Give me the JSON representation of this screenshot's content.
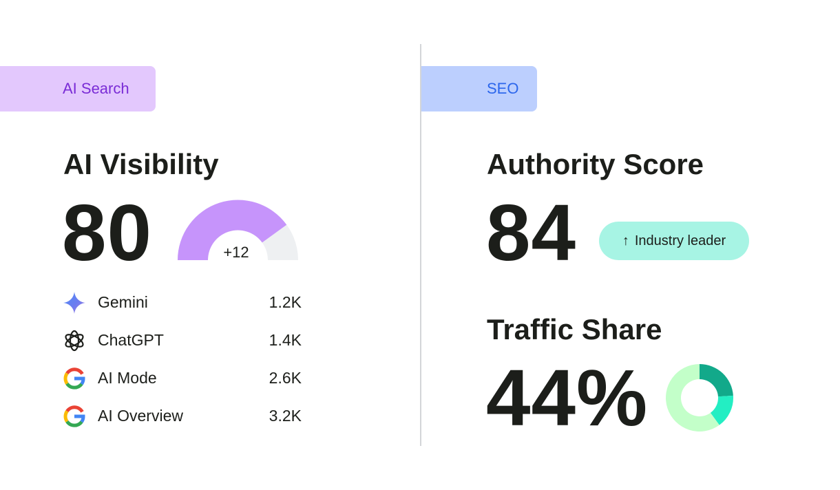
{
  "ai_search": {
    "tag": "AI Search",
    "title": "AI Visibility",
    "score": "80",
    "gauge": {
      "fill_fraction": 0.8,
      "delta": "+12",
      "fill_color": "#c694fb",
      "track_color": "#eef0f2"
    },
    "sources": [
      {
        "icon": "gemini-icon",
        "name": "Gemini",
        "value": "1.2K"
      },
      {
        "icon": "chatgpt-icon",
        "name": "ChatGPT",
        "value": "1.4K"
      },
      {
        "icon": "google-icon",
        "name": "AI Mode",
        "value": "2.6K"
      },
      {
        "icon": "google-icon",
        "name": "AI Overview",
        "value": "3.2K"
      }
    ]
  },
  "seo": {
    "tag": "SEO",
    "authority": {
      "title": "Authority Score",
      "score": "84",
      "badge": {
        "icon": "arrow-up-icon",
        "label": "Industry leader"
      }
    },
    "traffic": {
      "title": "Traffic Share",
      "value": "44%",
      "donut": {
        "segments": [
          {
            "fraction": 0.24,
            "color": "#12a98a"
          },
          {
            "fraction": 0.16,
            "color": "#23eec3"
          },
          {
            "fraction": 0.6,
            "color": "#c3ffc9"
          }
        ]
      }
    }
  },
  "colors": {
    "ai_tag_bg": "#e3c8fd",
    "ai_tag_text": "#7a2cd6",
    "seo_tag_bg": "#bccffe",
    "seo_tag_text": "#2b66ec",
    "badge_bg": "#a7f4e4"
  }
}
